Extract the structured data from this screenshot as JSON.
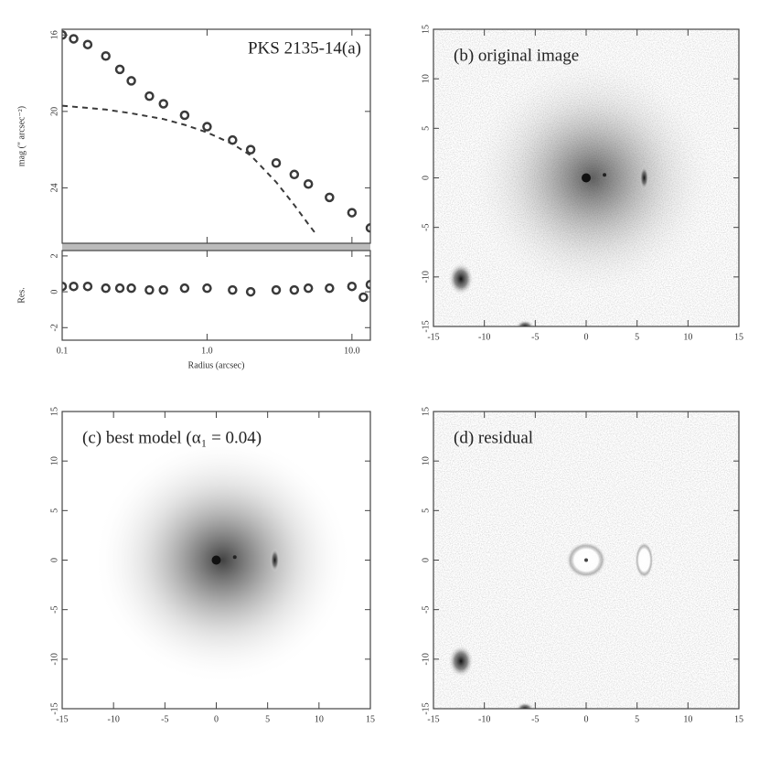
{
  "chart_data": [
    {
      "type": "line",
      "title": "PKS 2135-14(a)",
      "y_label": "mag (\" arcsec⁻²)",
      "xlog": true,
      "xlim": [
        0.1,
        13.4
      ],
      "ylim": [
        26.9,
        15.7
      ],
      "yticks": [
        16,
        20,
        24
      ],
      "series": [
        {
          "color": "#3a3a3a",
          "marker": true,
          "x": [
            0.1,
            0.12,
            0.15,
            0.2,
            0.25,
            0.3,
            0.4,
            0.5,
            0.7,
            1.0,
            1.5,
            2,
            3,
            4,
            5,
            7,
            10,
            13.4
          ],
          "values": [
            16.0,
            16.2,
            16.5,
            17.1,
            17.8,
            18.4,
            19.2,
            19.6,
            20.2,
            20.8,
            21.5,
            22.0,
            22.7,
            23.3,
            23.8,
            24.5,
            25.3,
            26.1
          ]
        },
        {
          "color": "#3a3a3a",
          "dash": true,
          "x": [
            0.1,
            0.2,
            0.3,
            0.5,
            0.7,
            1.0,
            1.5,
            2,
            3,
            4,
            5,
            5.75
          ],
          "values": [
            19.7,
            19.9,
            20.1,
            20.4,
            20.7,
            21.1,
            21.7,
            22.3,
            23.7,
            24.9,
            25.9,
            26.5
          ]
        }
      ]
    },
    {
      "type": "line",
      "y_label": "Res.",
      "x_label": "Radius (arcsec)",
      "xlog": true,
      "xlim": [
        0.1,
        13.4
      ],
      "ylim": [
        -2.7,
        2.3
      ],
      "xticks": [
        0.1,
        {
          "value": 1,
          "label": "1.0"
        },
        {
          "value": 10,
          "label": "10.0"
        }
      ],
      "yticks": [
        -2,
        0,
        2
      ],
      "series": [
        {
          "color": "#3a3a3a",
          "marker": true,
          "x": [
            0.1,
            0.12,
            0.15,
            0.2,
            0.25,
            0.3,
            0.4,
            0.5,
            0.7,
            1.0,
            1.5,
            2,
            3,
            4,
            5,
            7,
            10,
            12,
            13.4
          ],
          "values": [
            0.3,
            0.3,
            0.3,
            0.2,
            0.2,
            0.2,
            0.1,
            0.1,
            0.2,
            0.2,
            0.1,
            0.0,
            0.1,
            0.1,
            0.2,
            0.2,
            0.3,
            -0.3,
            0.4
          ]
        }
      ]
    },
    {
      "type": "image",
      "title": "(b) original image",
      "variant": "original",
      "xlim": [
        -15,
        15
      ],
      "ylim": [
        -15,
        15
      ],
      "xticks": [
        -15,
        -10,
        -5,
        0,
        5,
        10,
        15
      ],
      "yticks": [
        -15,
        -10,
        -5,
        0,
        5,
        10,
        15
      ]
    },
    {
      "type": "image",
      "title": "(c) best model (α₁ = 0.04)",
      "variant": "model",
      "xlim": [
        -15,
        15
      ],
      "ylim": [
        -15,
        15
      ],
      "xticks": [
        -15,
        -10,
        -5,
        0,
        5,
        10,
        15
      ],
      "yticks": [
        -15,
        -10,
        -5,
        0,
        5,
        10,
        15
      ]
    },
    {
      "type": "image",
      "title": "(d) residual",
      "variant": "residual",
      "xlim": [
        -15,
        15
      ],
      "ylim": [
        -15,
        15
      ],
      "xticks": [
        -15,
        -10,
        -5,
        0,
        5,
        10,
        15
      ],
      "yticks": [
        -15,
        -10,
        -5,
        0,
        5,
        10,
        15
      ]
    }
  ]
}
